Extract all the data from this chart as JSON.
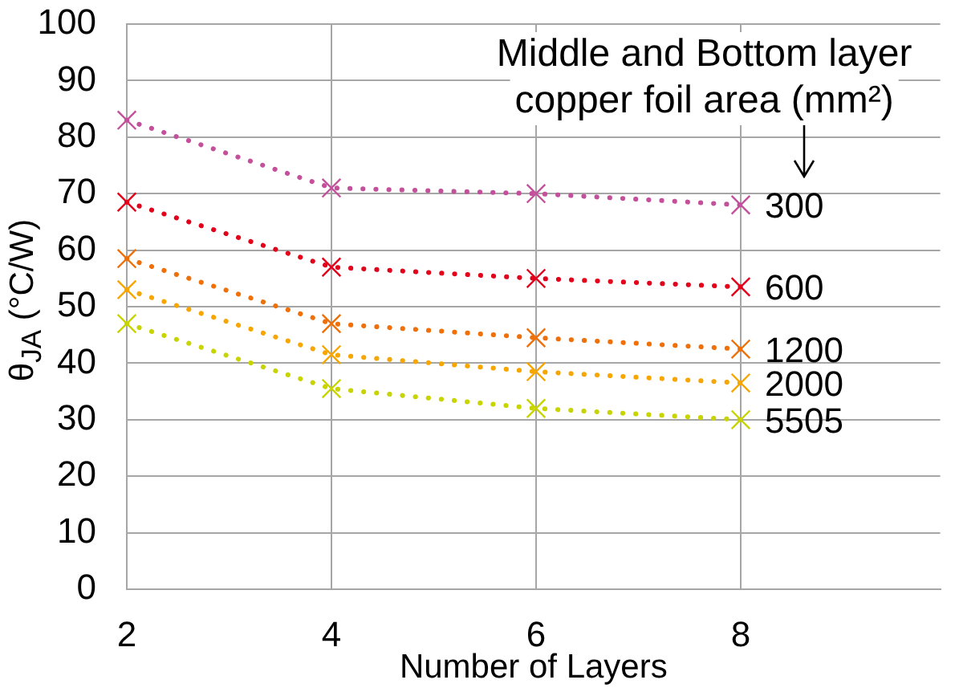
{
  "chart_data": {
    "type": "line",
    "xlabel": "Number of Layers",
    "ylabel": "θ$_{JA}$ (°C/W)",
    "legend_title": "Middle and Bottom layer copper foil area (mm²)",
    "x": [
      2,
      4,
      6,
      8
    ],
    "series": [
      {
        "name": "300",
        "color": "#c4509c",
        "values": [
          83,
          71,
          70,
          68
        ]
      },
      {
        "name": "600",
        "color": "#e2001a",
        "values": [
          68.5,
          57,
          55,
          53.5
        ]
      },
      {
        "name": "1200",
        "color": "#ef7008",
        "values": [
          58.5,
          47,
          44.5,
          42.5
        ]
      },
      {
        "name": "2000",
        "color": "#f7a600",
        "values": [
          53,
          41.5,
          38.5,
          36.5
        ]
      },
      {
        "name": "5505",
        "color": "#c8d400",
        "values": [
          47,
          35.5,
          32,
          30
        ]
      }
    ],
    "xlim": [
      2,
      9.95
    ],
    "xticks": [
      2,
      4,
      6,
      8
    ],
    "ylim": [
      0,
      100
    ],
    "yticks": [
      0,
      10,
      20,
      30,
      40,
      50,
      60,
      70,
      80,
      90,
      100
    ],
    "grid": true,
    "marker": "cross",
    "line_style": "dotted"
  }
}
